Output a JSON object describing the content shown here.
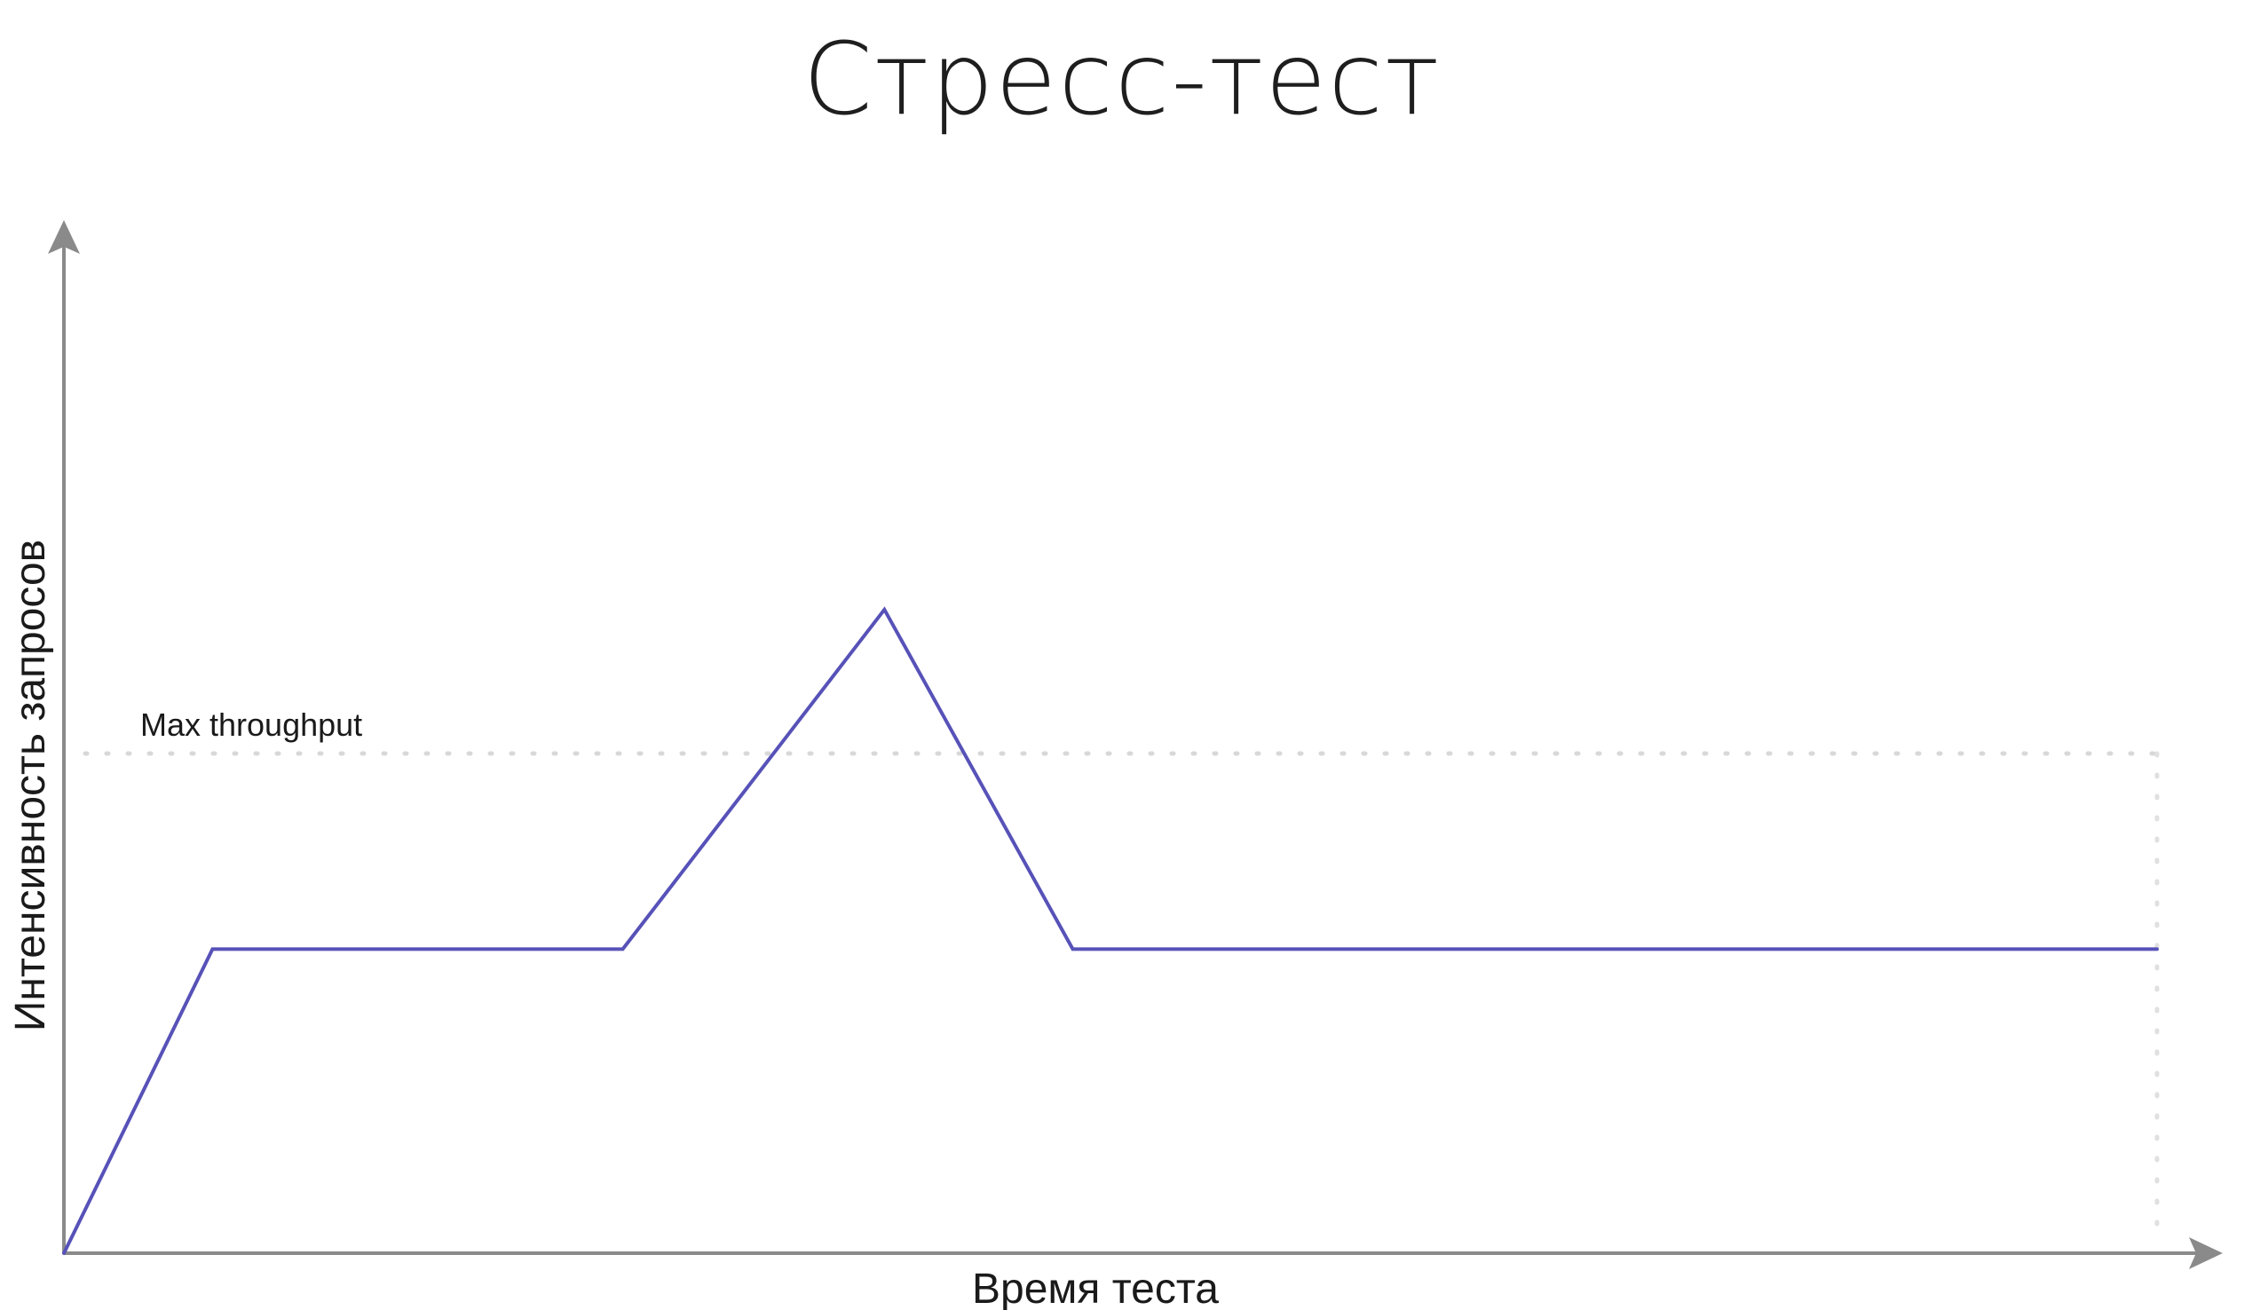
{
  "chart_data": {
    "type": "line",
    "title": "Стресс-тест",
    "xlabel": "Время теста",
    "ylabel": "Интенсивность запросов",
    "x": [
      0,
      7.1,
      26.7,
      39.2,
      48.2,
      100
    ],
    "series": [
      {
        "values": [
          0,
          30.0,
          30.0,
          63.5,
          30.0,
          30.0
        ]
      }
    ],
    "xlim": [
      0,
      100
    ],
    "ylim": [
      0,
      100
    ],
    "reference_lines": [
      {
        "label": "Max throughput",
        "y": 49.3,
        "style": "dotted"
      }
    ],
    "grid": false,
    "legend": "none",
    "colors": {
      "series": "#5752b8",
      "axis": "#8a8a8a",
      "reference": "#dcdcdc"
    }
  }
}
